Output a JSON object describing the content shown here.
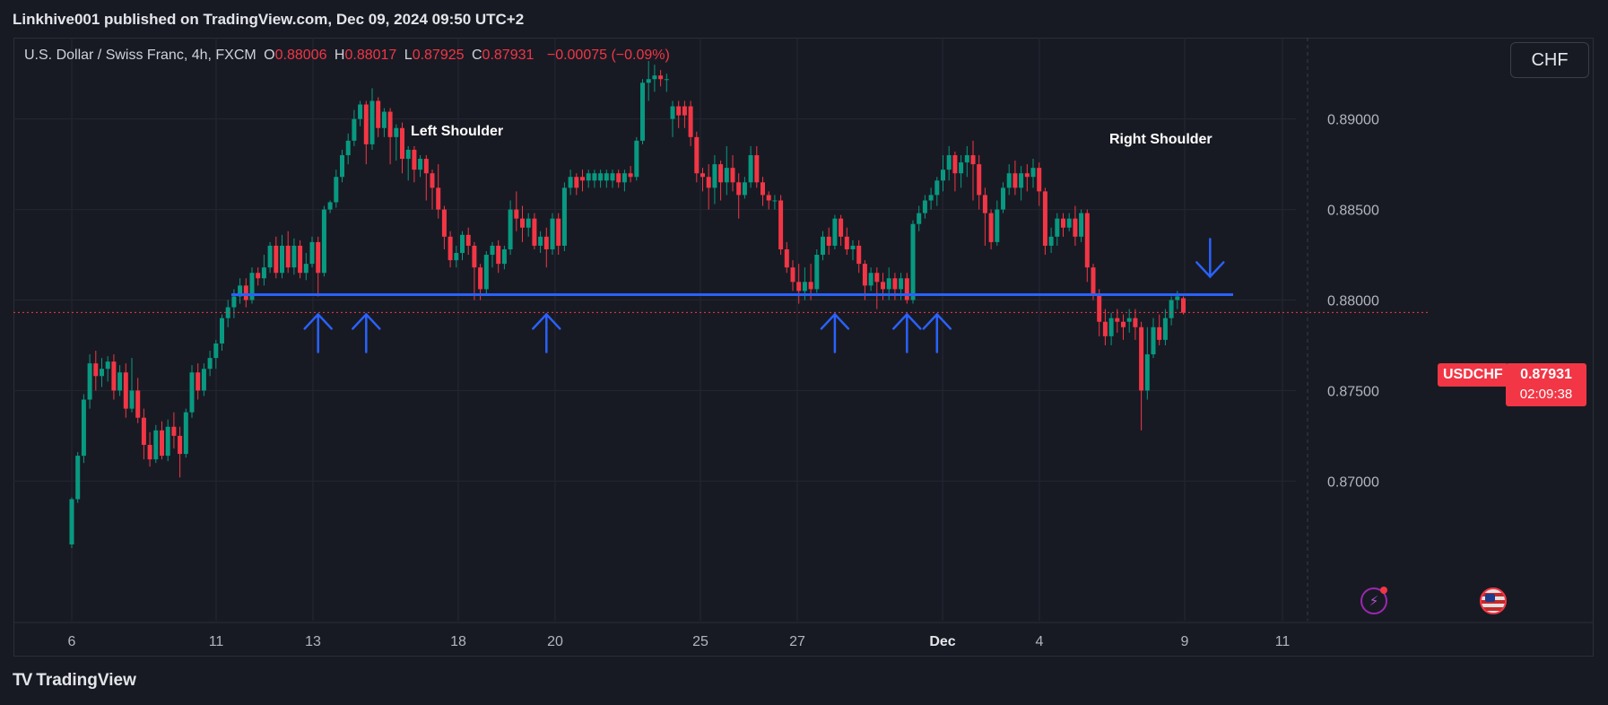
{
  "header": {
    "published": "Linkhive001 published on TradingView.com, Dec 09, 2024 09:50 UTC+2"
  },
  "legend": {
    "symbol": "U.S. Dollar / Swiss Franc, 4h, FXCM",
    "open_key": "O",
    "open": "0.88006",
    "high_key": "H",
    "high": "0.88017",
    "low_key": "L",
    "low": "0.87925",
    "close_key": "C",
    "close": "0.87931",
    "change": "−0.00075 (−0.09%)"
  },
  "currency_button": "CHF",
  "price_tag": {
    "symbol": "USDCHF",
    "price": "0.87931",
    "countdown": "02:09:38"
  },
  "brand": {
    "logo_mark": "TV",
    "name": "TradingView"
  },
  "colors": {
    "background": "#181a23",
    "up": "#089981",
    "down": "#f23645",
    "support_line": "#2962ff",
    "arrow": "#2962ff",
    "grid": "#232733"
  },
  "icons": [
    "lightning-icon",
    "us-flag-icon"
  ],
  "chart_data": {
    "type": "candlestick",
    "title": "U.S. Dollar / Swiss Franc, 4h, FXCM",
    "y_range": [
      0.8665,
      0.8935
    ],
    "y_ticks": [
      "0.89000",
      "0.88500",
      "0.88000",
      "0.87500",
      "0.87000"
    ],
    "x_ticks": [
      "6",
      "11",
      "13",
      "18",
      "20",
      "25",
      "27",
      "Dec",
      "4",
      "9",
      "11"
    ],
    "grid": true,
    "annotations": [
      "Left Shoulder",
      "Right Shoulder"
    ],
    "support_level": 0.8803,
    "last_price": 0.87931,
    "up_arrows_at_candle": [
      41,
      49,
      79,
      127,
      139,
      144
    ],
    "down_arrows_at_candle": [
      189
    ],
    "candles": [
      [
        0.8665,
        0.869,
        0.8663,
        0.8691
      ],
      [
        0.869,
        0.8714,
        0.8688,
        0.8716
      ],
      [
        0.8714,
        0.8745,
        0.871,
        0.8748
      ],
      [
        0.8745,
        0.8765,
        0.874,
        0.877
      ],
      [
        0.8765,
        0.8758,
        0.875,
        0.8772
      ],
      [
        0.8758,
        0.8762,
        0.8752,
        0.8768
      ],
      [
        0.8762,
        0.8766,
        0.8755,
        0.8769
      ],
      [
        0.8766,
        0.875,
        0.8745,
        0.877
      ],
      [
        0.875,
        0.876,
        0.8747,
        0.8764
      ],
      [
        0.876,
        0.874,
        0.8735,
        0.8765
      ],
      [
        0.874,
        0.875,
        0.8738,
        0.8768
      ],
      [
        0.875,
        0.8735,
        0.8732,
        0.8757
      ],
      [
        0.8735,
        0.872,
        0.8712,
        0.874
      ],
      [
        0.872,
        0.8712,
        0.8708,
        0.8727
      ],
      [
        0.8712,
        0.8728,
        0.871,
        0.8731
      ],
      [
        0.8728,
        0.8714,
        0.8712,
        0.8733
      ],
      [
        0.8714,
        0.873,
        0.8711,
        0.8734
      ],
      [
        0.873,
        0.8725,
        0.8718,
        0.8738
      ],
      [
        0.8725,
        0.8715,
        0.8702,
        0.873
      ],
      [
        0.8715,
        0.8738,
        0.8713,
        0.874
      ],
      [
        0.8738,
        0.876,
        0.8735,
        0.8764
      ],
      [
        0.876,
        0.875,
        0.8745,
        0.8765
      ],
      [
        0.875,
        0.8762,
        0.8747,
        0.8765
      ],
      [
        0.8762,
        0.8768,
        0.8758,
        0.8772
      ],
      [
        0.8768,
        0.8776,
        0.8762,
        0.8778
      ],
      [
        0.8776,
        0.879,
        0.8772,
        0.8792
      ],
      [
        0.879,
        0.8796,
        0.8785,
        0.88
      ],
      [
        0.8796,
        0.8802,
        0.879,
        0.8806
      ],
      [
        0.8802,
        0.8808,
        0.8798,
        0.8812
      ],
      [
        0.8808,
        0.88,
        0.8796,
        0.8812
      ],
      [
        0.88,
        0.8815,
        0.8798,
        0.8818
      ],
      [
        0.8815,
        0.8812,
        0.8808,
        0.8818
      ],
      [
        0.8812,
        0.8818,
        0.8808,
        0.8825
      ],
      [
        0.8818,
        0.883,
        0.8815,
        0.8832
      ],
      [
        0.883,
        0.8815,
        0.8812,
        0.8835
      ],
      [
        0.8815,
        0.883,
        0.8812,
        0.8836
      ],
      [
        0.883,
        0.8818,
        0.8815,
        0.8838
      ],
      [
        0.8818,
        0.883,
        0.8814,
        0.8834
      ],
      [
        0.883,
        0.8815,
        0.8812,
        0.8833
      ],
      [
        0.8815,
        0.882,
        0.8811,
        0.8826
      ],
      [
        0.882,
        0.8832,
        0.8818,
        0.8835
      ],
      [
        0.8832,
        0.8815,
        0.8802,
        0.8835
      ],
      [
        0.8815,
        0.885,
        0.8813,
        0.8852
      ],
      [
        0.885,
        0.8854,
        0.8848,
        0.8855
      ],
      [
        0.8854,
        0.8868,
        0.8851,
        0.8872
      ],
      [
        0.8868,
        0.888,
        0.8865,
        0.8883
      ],
      [
        0.888,
        0.8888,
        0.8875,
        0.8892
      ],
      [
        0.8888,
        0.89,
        0.8885,
        0.8905
      ],
      [
        0.89,
        0.8908,
        0.8896,
        0.891
      ],
      [
        0.8908,
        0.8886,
        0.8875,
        0.891
      ],
      [
        0.8886,
        0.891,
        0.8883,
        0.8917
      ],
      [
        0.891,
        0.8895,
        0.889,
        0.8912
      ],
      [
        0.8895,
        0.8904,
        0.889,
        0.8906
      ],
      [
        0.8904,
        0.889,
        0.8875,
        0.8906
      ],
      [
        0.889,
        0.8895,
        0.8877,
        0.8897
      ],
      [
        0.8895,
        0.8878,
        0.887,
        0.8898
      ],
      [
        0.8878,
        0.8883,
        0.8866,
        0.8885
      ],
      [
        0.8883,
        0.8872,
        0.8865,
        0.8885
      ],
      [
        0.8872,
        0.8878,
        0.8868,
        0.888
      ],
      [
        0.8878,
        0.887,
        0.8855,
        0.888
      ],
      [
        0.887,
        0.8862,
        0.885,
        0.8872
      ],
      [
        0.8862,
        0.885,
        0.8845,
        0.8875
      ],
      [
        0.885,
        0.8835,
        0.8828,
        0.8852
      ],
      [
        0.8835,
        0.8822,
        0.8818,
        0.8838
      ],
      [
        0.8822,
        0.8826,
        0.8818,
        0.883
      ],
      [
        0.8826,
        0.8836,
        0.8822,
        0.8838
      ],
      [
        0.8836,
        0.883,
        0.8825,
        0.884
      ],
      [
        0.883,
        0.8818,
        0.88,
        0.8832
      ],
      [
        0.8818,
        0.8806,
        0.88,
        0.882
      ],
      [
        0.8806,
        0.8825,
        0.8803,
        0.8827
      ],
      [
        0.8825,
        0.883,
        0.8818,
        0.8832
      ],
      [
        0.883,
        0.882,
        0.8815,
        0.8833
      ],
      [
        0.882,
        0.8828,
        0.8817,
        0.883
      ],
      [
        0.8828,
        0.885,
        0.8825,
        0.8855
      ],
      [
        0.885,
        0.8845,
        0.8838,
        0.886
      ],
      [
        0.8845,
        0.884,
        0.8832,
        0.8852
      ],
      [
        0.884,
        0.8845,
        0.8835,
        0.8848
      ],
      [
        0.8845,
        0.883,
        0.8828,
        0.8848
      ],
      [
        0.883,
        0.8835,
        0.8826,
        0.8838
      ],
      [
        0.8835,
        0.8828,
        0.8818,
        0.884
      ],
      [
        0.8828,
        0.8845,
        0.8825,
        0.8848
      ],
      [
        0.8845,
        0.883,
        0.8825,
        0.8848
      ],
      [
        0.883,
        0.8862,
        0.8827,
        0.8865
      ],
      [
        0.8862,
        0.8868,
        0.8858,
        0.8872
      ],
      [
        0.8868,
        0.8862,
        0.8858,
        0.887
      ],
      [
        0.8868,
        0.8866,
        0.886,
        0.8872
      ],
      [
        0.8866,
        0.887,
        0.8862,
        0.8872
      ],
      [
        0.8866,
        0.887,
        0.8862,
        0.8872
      ],
      [
        0.8866,
        0.887,
        0.8862,
        0.8872
      ],
      [
        0.8866,
        0.887,
        0.8862,
        0.8872
      ],
      [
        0.8866,
        0.887,
        0.8862,
        0.8872
      ],
      [
        0.887,
        0.8865,
        0.8862,
        0.8872
      ],
      [
        0.8865,
        0.887,
        0.886,
        0.8872
      ],
      [
        0.887,
        0.8868,
        0.8865,
        0.8874
      ],
      [
        0.8868,
        0.8888,
        0.8866,
        0.889
      ],
      [
        0.8888,
        0.892,
        0.8886,
        0.8922
      ],
      [
        0.892,
        0.8922,
        0.891,
        0.8932
      ],
      [
        0.8922,
        0.8924,
        0.8915,
        0.893
      ],
      [
        0.8924,
        0.8922,
        0.8918,
        0.8927
      ],
      [
        0.8922,
        0.8922,
        0.8915,
        0.8925
      ],
      [
        0.89,
        0.8907,
        0.889,
        0.891
      ],
      [
        0.8907,
        0.8902,
        0.8895,
        0.891
      ],
      [
        0.8907,
        0.8902,
        0.8895,
        0.891
      ],
      [
        0.8907,
        0.889,
        0.8885,
        0.891
      ],
      [
        0.889,
        0.887,
        0.8865,
        0.8893
      ],
      [
        0.887,
        0.8868,
        0.886,
        0.8873
      ],
      [
        0.8868,
        0.8862,
        0.885,
        0.8875
      ],
      [
        0.8862,
        0.8875,
        0.8853,
        0.888
      ],
      [
        0.8875,
        0.8865,
        0.8855,
        0.8877
      ],
      [
        0.8865,
        0.8873,
        0.8858,
        0.8885
      ],
      [
        0.8873,
        0.8865,
        0.886,
        0.888
      ],
      [
        0.8865,
        0.8858,
        0.8845,
        0.887
      ],
      [
        0.8858,
        0.8865,
        0.8856,
        0.8868
      ],
      [
        0.8865,
        0.888,
        0.8862,
        0.8885
      ],
      [
        0.888,
        0.8865,
        0.8862,
        0.8885
      ],
      [
        0.8865,
        0.8858,
        0.8852,
        0.8868
      ],
      [
        0.8858,
        0.8855,
        0.885,
        0.886
      ],
      [
        0.8855,
        0.8855,
        0.885,
        0.8858
      ],
      [
        0.8855,
        0.8828,
        0.8825,
        0.8858
      ],
      [
        0.8828,
        0.8818,
        0.8815,
        0.8832
      ],
      [
        0.8818,
        0.881,
        0.8805,
        0.8822
      ],
      [
        0.881,
        0.8805,
        0.8798,
        0.882
      ],
      [
        0.8805,
        0.881,
        0.88,
        0.8818
      ],
      [
        0.881,
        0.8806,
        0.88,
        0.882
      ],
      [
        0.8806,
        0.8825,
        0.8804,
        0.8828
      ],
      [
        0.8825,
        0.8835,
        0.8822,
        0.8838
      ],
      [
        0.8835,
        0.883,
        0.8825,
        0.884
      ],
      [
        0.883,
        0.8845,
        0.8828,
        0.8847
      ],
      [
        0.8845,
        0.8835,
        0.883,
        0.8847
      ],
      [
        0.8835,
        0.8828,
        0.8825,
        0.884
      ],
      [
        0.8828,
        0.883,
        0.8822,
        0.8833
      ],
      [
        0.883,
        0.882,
        0.8815,
        0.8833
      ],
      [
        0.882,
        0.8808,
        0.88,
        0.8822
      ],
      [
        0.8808,
        0.8815,
        0.8805,
        0.8818
      ],
      [
        0.8815,
        0.881,
        0.8795,
        0.8818
      ],
      [
        0.881,
        0.8806,
        0.88,
        0.8815
      ],
      [
        0.8806,
        0.8812,
        0.88,
        0.8818
      ],
      [
        0.8812,
        0.8806,
        0.88,
        0.8815
      ],
      [
        0.8806,
        0.8812,
        0.88,
        0.8815
      ],
      [
        0.8812,
        0.88,
        0.8798,
        0.8815
      ],
      [
        0.88,
        0.8842,
        0.8798,
        0.8844
      ],
      [
        0.8842,
        0.8848,
        0.8838,
        0.8852
      ],
      [
        0.8848,
        0.8855,
        0.8845,
        0.8858
      ],
      [
        0.8855,
        0.8858,
        0.885,
        0.8862
      ],
      [
        0.8858,
        0.8866,
        0.8852,
        0.8868
      ],
      [
        0.8866,
        0.8872,
        0.886,
        0.888
      ],
      [
        0.8872,
        0.888,
        0.8866,
        0.8885
      ],
      [
        0.888,
        0.887,
        0.886,
        0.8882
      ],
      [
        0.887,
        0.8876,
        0.8862,
        0.888
      ],
      [
        0.8876,
        0.888,
        0.8868,
        0.8885
      ],
      [
        0.888,
        0.8875,
        0.8855,
        0.8888
      ],
      [
        0.8875,
        0.8858,
        0.885,
        0.888
      ],
      [
        0.8858,
        0.8848,
        0.883,
        0.8862
      ],
      [
        0.8848,
        0.8832,
        0.8828,
        0.885
      ],
      [
        0.8832,
        0.885,
        0.883,
        0.8855
      ],
      [
        0.885,
        0.8862,
        0.8848,
        0.8865
      ],
      [
        0.8862,
        0.887,
        0.8858,
        0.8875
      ],
      [
        0.887,
        0.8862,
        0.8858,
        0.8877
      ],
      [
        0.8862,
        0.887,
        0.8855,
        0.8874
      ],
      [
        0.887,
        0.8868,
        0.886,
        0.8875
      ],
      [
        0.8868,
        0.8873,
        0.8862,
        0.8878
      ],
      [
        0.8873,
        0.886,
        0.8852,
        0.8876
      ],
      [
        0.886,
        0.883,
        0.8825,
        0.8862
      ],
      [
        0.883,
        0.8835,
        0.8826,
        0.884
      ],
      [
        0.8835,
        0.8845,
        0.883,
        0.8848
      ],
      [
        0.8845,
        0.884,
        0.8835,
        0.8848
      ],
      [
        0.884,
        0.8845,
        0.8838,
        0.8848
      ],
      [
        0.8845,
        0.8835,
        0.883,
        0.8852
      ],
      [
        0.8835,
        0.8848,
        0.8832,
        0.885
      ],
      [
        0.8848,
        0.8818,
        0.881,
        0.885
      ],
      [
        0.8818,
        0.8803,
        0.88,
        0.882
      ],
      [
        0.8803,
        0.8788,
        0.878,
        0.8806
      ],
      [
        0.8788,
        0.878,
        0.8775,
        0.8795
      ],
      [
        0.878,
        0.879,
        0.8775,
        0.8793
      ],
      [
        0.879,
        0.8788,
        0.8782,
        0.8795
      ],
      [
        0.8788,
        0.8785,
        0.8778,
        0.8792
      ],
      [
        0.8788,
        0.879,
        0.8782,
        0.8795
      ],
      [
        0.879,
        0.8785,
        0.8778,
        0.8795
      ],
      [
        0.8785,
        0.875,
        0.8728,
        0.8788
      ],
      [
        0.875,
        0.877,
        0.8745,
        0.8785
      ],
      [
        0.877,
        0.8785,
        0.8768,
        0.879
      ],
      [
        0.8785,
        0.8778,
        0.8775,
        0.8792
      ],
      [
        0.8778,
        0.879,
        0.8775,
        0.8795
      ],
      [
        0.879,
        0.88,
        0.8786,
        0.8802
      ],
      [
        0.88,
        0.8802,
        0.8795,
        0.8805
      ],
      [
        0.8801,
        0.8793,
        0.8792,
        0.8802
      ]
    ]
  }
}
